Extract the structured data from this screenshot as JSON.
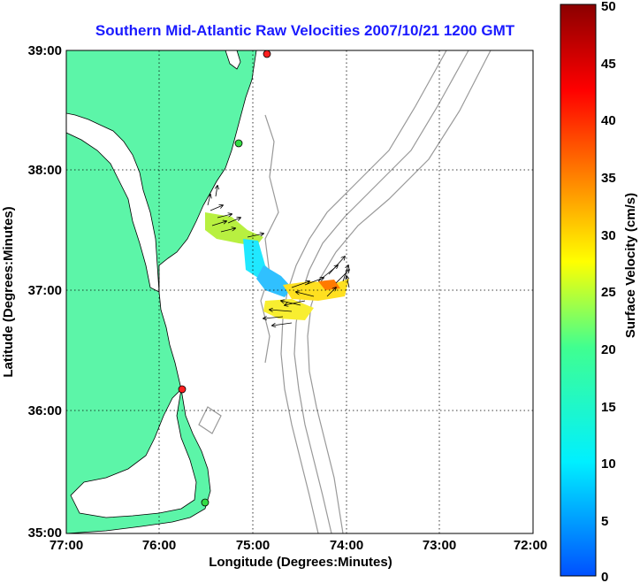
{
  "title": "Southern Mid-Atlantic Raw Velocities 2007/10/21 1200 GMT",
  "xlabel": "Longitude (Degrees:Minutes)",
  "ylabel": "Latitude (Degrees:Minutes)",
  "colorbar_label": "Surface Velocity (cm/s)",
  "x_ticks": [
    "77:00",
    "76:00",
    "75:00",
    "74:00",
    "73:00",
    "72:00"
  ],
  "y_ticks": [
    "39:00",
    "38:00",
    "37:00",
    "36:00",
    "35:00"
  ],
  "colorbar_ticks": [
    "50",
    "45",
    "40",
    "35",
    "30",
    "25",
    "20",
    "15",
    "10",
    "5",
    "0"
  ],
  "colors": {
    "land": "#5cf5a8",
    "water": "#ffffff",
    "bathymetry": "#999999",
    "title": "#1a1aff",
    "station_red": "#ff2020",
    "station_green": "#33dd44"
  },
  "map_extent": {
    "lon": [
      -77,
      -72
    ],
    "lat": [
      35,
      39
    ]
  },
  "grid": "dotted",
  "stations": [
    {
      "lon": -74.9,
      "lat": 38.95,
      "color": "red"
    },
    {
      "lon": -75.15,
      "lat": 38.2,
      "color": "green"
    },
    {
      "lon": -75.7,
      "lat": 36.17,
      "color": "red"
    },
    {
      "lon": -75.5,
      "lat": 35.3,
      "color": "green"
    }
  ]
}
